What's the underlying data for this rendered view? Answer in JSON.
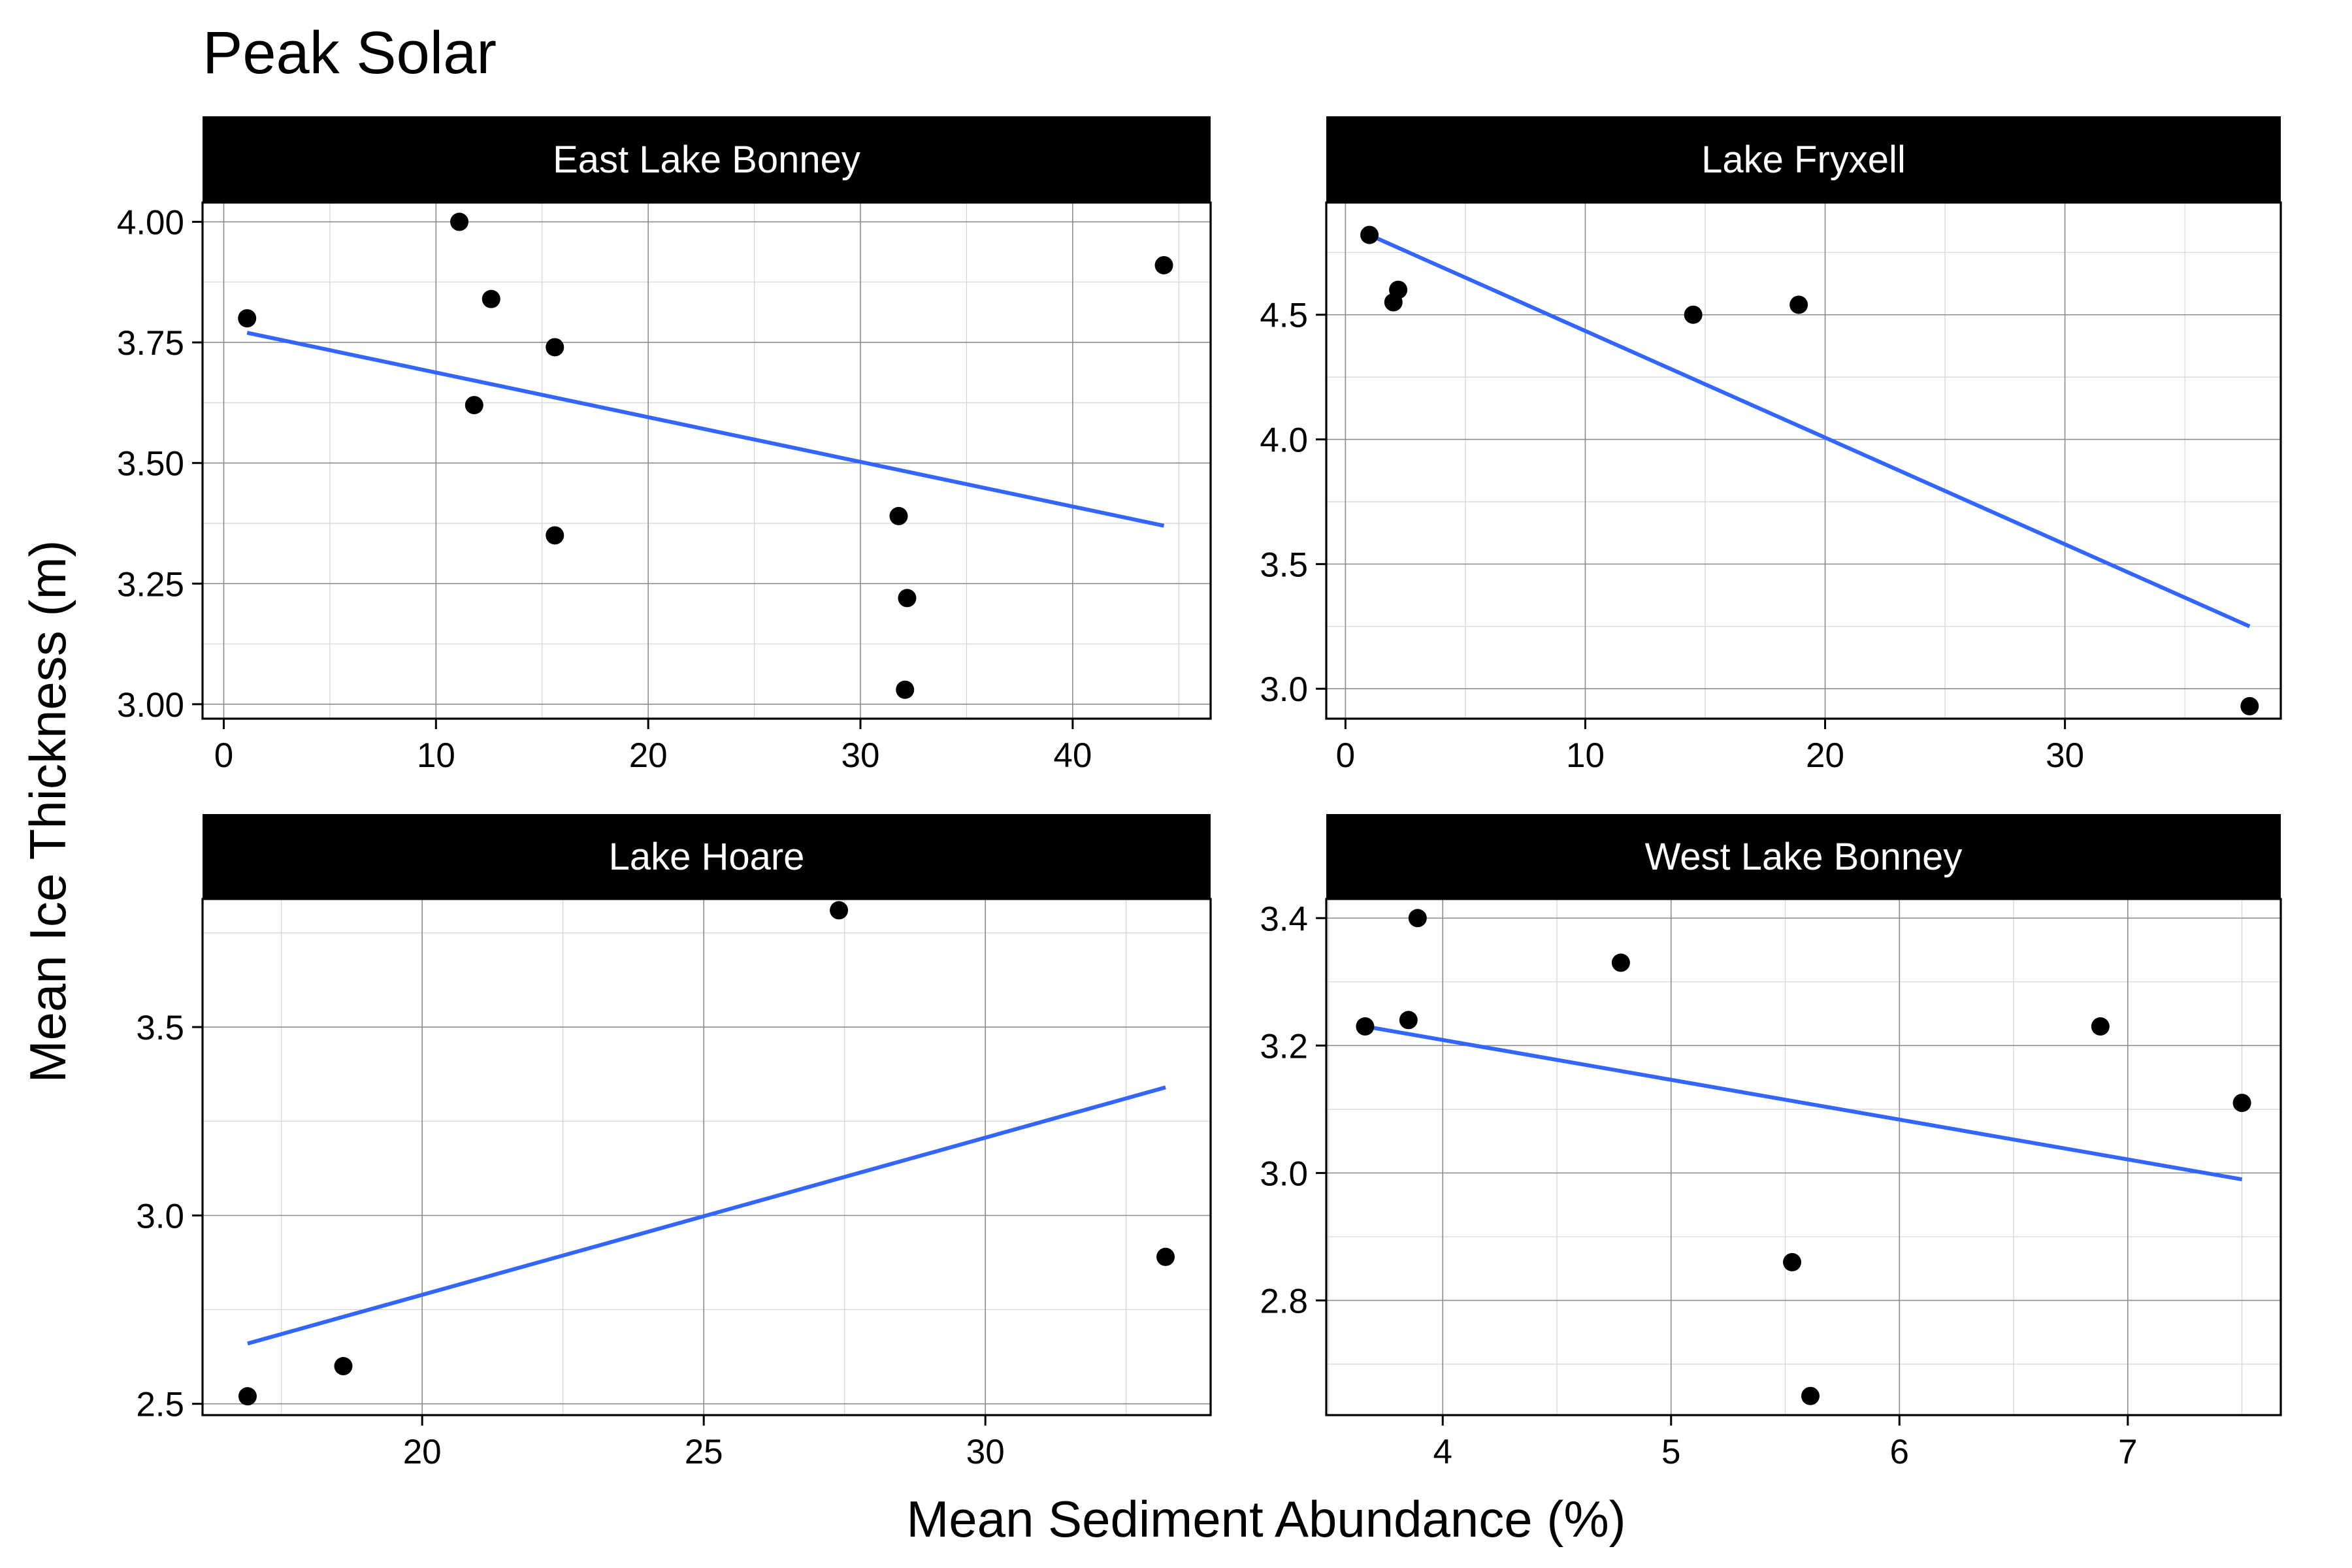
{
  "chart_data": {
    "type": "scatter",
    "title": "Peak Solar",
    "xlabel": "Mean Sediment Abundance (%)",
    "ylabel": "Mean Ice Thickness (m)",
    "grid": true,
    "legend": "none",
    "colors": {
      "points": "#000000",
      "fit_line": "#3366ff",
      "strip": "#000000",
      "strip_text": "#ffffff"
    },
    "panels": [
      {
        "name": "East Lake Bonney",
        "xlim": [
          -1,
          46.5
        ],
        "ylim": [
          2.97,
          4.04
        ],
        "xticks": [
          0,
          10,
          20,
          30,
          40
        ],
        "yticks": [
          3.0,
          3.25,
          3.5,
          3.75,
          4.0
        ],
        "ytick_labels": [
          "3.00",
          "3.25",
          "3.50",
          "3.75",
          "4.00"
        ],
        "points": [
          {
            "x": 1.1,
            "y": 3.8
          },
          {
            "x": 11.1,
            "y": 4.0
          },
          {
            "x": 12.6,
            "y": 3.84
          },
          {
            "x": 11.8,
            "y": 3.62
          },
          {
            "x": 15.6,
            "y": 3.74
          },
          {
            "x": 15.6,
            "y": 3.35
          },
          {
            "x": 31.8,
            "y": 3.39
          },
          {
            "x": 32.2,
            "y": 3.22
          },
          {
            "x": 32.1,
            "y": 3.03
          },
          {
            "x": 44.3,
            "y": 3.91
          }
        ],
        "fit": {
          "x": [
            1.1,
            44.3
          ],
          "y": [
            3.77,
            3.37
          ]
        }
      },
      {
        "name": "Lake Fryxell",
        "xlim": [
          -0.8,
          39
        ],
        "ylim": [
          2.88,
          4.95
        ],
        "xticks": [
          0,
          10,
          20,
          30
        ],
        "yticks": [
          3.0,
          3.5,
          4.0,
          4.5
        ],
        "ytick_labels": [
          "3.0",
          "3.5",
          "4.0",
          "4.5"
        ],
        "points": [
          {
            "x": 1.0,
            "y": 4.82
          },
          {
            "x": 2.0,
            "y": 4.55
          },
          {
            "x": 2.2,
            "y": 4.6
          },
          {
            "x": 14.5,
            "y": 4.5
          },
          {
            "x": 18.9,
            "y": 4.54
          },
          {
            "x": 37.7,
            "y": 2.93
          }
        ],
        "fit": {
          "x": [
            1.0,
            37.7
          ],
          "y": [
            4.82,
            3.25
          ]
        }
      },
      {
        "name": "Lake Hoare",
        "xlim": [
          16.1,
          34.0
        ],
        "ylim": [
          2.47,
          3.84
        ],
        "xticks": [
          20,
          25,
          30
        ],
        "yticks": [
          2.5,
          3.0,
          3.5
        ],
        "ytick_labels": [
          "2.5",
          "3.0",
          "3.5"
        ],
        "points": [
          {
            "x": 16.9,
            "y": 2.52
          },
          {
            "x": 18.6,
            "y": 2.6
          },
          {
            "x": 27.4,
            "y": 3.81
          },
          {
            "x": 33.2,
            "y": 2.89
          }
        ],
        "fit": {
          "x": [
            16.9,
            33.2
          ],
          "y": [
            2.66,
            3.34
          ]
        }
      },
      {
        "name": "West Lake Bonney",
        "xlim": [
          3.49,
          7.67
        ],
        "ylim": [
          2.62,
          3.43
        ],
        "xticks": [
          4,
          5,
          6,
          7
        ],
        "yticks": [
          2.8,
          3.0,
          3.2,
          3.4
        ],
        "ytick_labels": [
          "2.8",
          "3.0",
          "3.2",
          "3.4"
        ],
        "points": [
          {
            "x": 3.66,
            "y": 3.23
          },
          {
            "x": 3.85,
            "y": 3.24
          },
          {
            "x": 3.89,
            "y": 3.4
          },
          {
            "x": 4.78,
            "y": 3.33
          },
          {
            "x": 5.53,
            "y": 2.86
          },
          {
            "x": 5.61,
            "y": 2.65
          },
          {
            "x": 6.88,
            "y": 3.23
          },
          {
            "x": 7.5,
            "y": 3.11
          }
        ],
        "fit": {
          "x": [
            3.66,
            7.5
          ],
          "y": [
            3.23,
            2.99
          ]
        }
      }
    ]
  }
}
